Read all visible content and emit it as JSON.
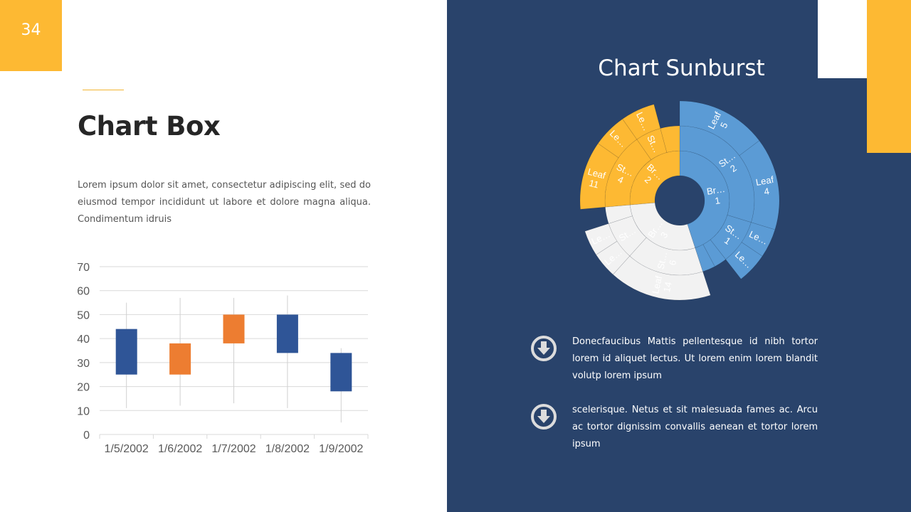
{
  "slide_number": "34",
  "left": {
    "title": "Chart Box",
    "body": "Lorem ipsum dolor sit amet, consectetur adipiscing elit, sed do eiusmod tempor incididunt ut labore et dolore magna aliqua. Condimentum  idruis"
  },
  "right": {
    "title": "Chart Sunburst",
    "bullets": [
      {
        "icon": "arrow-down-circle-icon",
        "text": "Donecfaucibus Mattis pellentesque id nibh tortor lorem id aliquet lectus. Ut lorem enim lorem blandit volutp lorem ipsum"
      },
      {
        "icon": "arrow-down-circle-icon",
        "text": "scelerisque. Netus et sit  malesuada fames ac. Arcu ac tortor dignissim convallis aenean et tortor lorem ipsum"
      }
    ]
  },
  "colors": {
    "navy": "#29436b",
    "yellow": "#fdb933",
    "up": "#ed7d31",
    "down": "#2f5597",
    "blue": "#5b9bd5",
    "gray": "#f2f2f2"
  },
  "chart_data": [
    {
      "type": "candlestick",
      "categories": [
        "1/5/2002",
        "1/6/2002",
        "1/7/2002",
        "1/8/2002",
        "1/9/2002"
      ],
      "open": [
        44,
        25,
        38,
        50,
        34
      ],
      "close": [
        25,
        38,
        50,
        34,
        18
      ],
      "high": [
        55,
        57,
        57,
        58,
        36
      ],
      "low": [
        11,
        12,
        13,
        11,
        5
      ],
      "ylim": [
        0,
        70
      ],
      "yticks": [
        "0",
        "10",
        "20",
        "30",
        "40",
        "50",
        "60",
        "70"
      ],
      "grid": true
    },
    {
      "type": "sunburst",
      "title": "Chart Sunburst",
      "nodes": [
        {
          "name": "Br…",
          "num": "1",
          "color": "#5b9bd5",
          "value": 162,
          "children": [
            {
              "name": "St…",
              "num": "2",
              "value": 107,
              "children": [
                {
                  "name": "Leaf",
                  "num": "5",
                  "value": 53
                },
                {
                  "name": "Leaf",
                  "num": "4",
                  "value": 54
                }
              ]
            },
            {
              "name": "St…",
              "num": "1",
              "value": 35,
              "children": [
                {
                  "name": "Le…",
                  "num": "",
                  "value": 17
                },
                {
                  "name": "Le…",
                  "num": "",
                  "value": 18
                }
              ]
            },
            {
              "name": "",
              "num": "",
              "value": 10,
              "children": []
            },
            {
              "name": "",
              "num": "",
              "value": 10,
              "children": []
            }
          ]
        },
        {
          "name": "Br…",
          "num": "3",
          "color": "#f2f2f2",
          "value": 103,
          "children": [
            {
              "name": "St…",
              "num": "6",
              "value": 60,
              "children": [
                {
                  "name": "Leaf",
                  "num": "14",
                  "value": 60
                }
              ]
            },
            {
              "name": "St…",
              "num": "",
              "value": 30,
              "children": [
                {
                  "name": "Le…",
                  "num": "",
                  "value": 15
                },
                {
                  "name": "Le…",
                  "num": "",
                  "value": 15
                }
              ]
            },
            {
              "name": "",
              "num": "",
              "value": 13,
              "children": []
            }
          ]
        },
        {
          "name": "Br…",
          "num": "2",
          "color": "#fdb933",
          "value": 95,
          "children": [
            {
              "name": "St…",
              "num": "4",
              "value": 60,
              "children": [
                {
                  "name": "Leaf",
                  "num": "11",
                  "value": 40
                },
                {
                  "name": "Le…",
                  "num": "",
                  "value": 20
                }
              ]
            },
            {
              "name": "St…",
              "num": "",
              "value": 20,
              "children": [
                {
                  "name": "Le…",
                  "num": "",
                  "value": 20
                }
              ]
            },
            {
              "name": "",
              "num": "",
              "value": 15,
              "children": []
            }
          ]
        }
      ]
    }
  ]
}
